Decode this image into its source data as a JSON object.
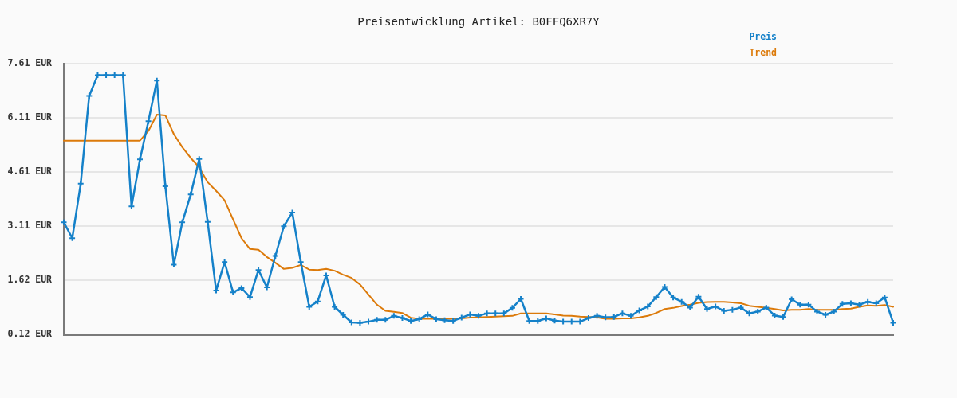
{
  "chart_data": {
    "type": "line",
    "title": "Preisentwicklung Artikel: B0FFQ6XR7Y",
    "categories": [
      null,
      null,
      null,
      null,
      null,
      null,
      null,
      null,
      null,
      null,
      null,
      null,
      null,
      null,
      null,
      null,
      null,
      null,
      null,
      null,
      null,
      null,
      null,
      null,
      null,
      null,
      null,
      null,
      null,
      null,
      null,
      null,
      null,
      null,
      null,
      null,
      null,
      null,
      null,
      null,
      null,
      null,
      null,
      null,
      null,
      null,
      null,
      null,
      null,
      null,
      null,
      null,
      null,
      null,
      null,
      null,
      null,
      null,
      null,
      null,
      null,
      null,
      null,
      null,
      null,
      null,
      null,
      null,
      null,
      null,
      null,
      null,
      null,
      null,
      null,
      null,
      null,
      null,
      null,
      null,
      null,
      null,
      null,
      null,
      null,
      null,
      null,
      null,
      null,
      null,
      null,
      null,
      null,
      null,
      null,
      null,
      null,
      null,
      null
    ],
    "series": [
      {
        "name": "Preis",
        "color": "#1581c9",
        "marker": "cross",
        "values": [
          3.22,
          2.78,
          4.29,
          6.72,
          7.29,
          7.29,
          7.29,
          7.29,
          3.66,
          4.96,
          6.02,
          7.14,
          4.22,
          2.05,
          3.22,
          3.99,
          4.97,
          3.23,
          1.33,
          2.12,
          1.28,
          1.4,
          1.15,
          1.9,
          1.42,
          2.29,
          3.11,
          3.49,
          2.12,
          0.88,
          1.03,
          1.75,
          0.88,
          0.66,
          0.45,
          0.44,
          0.47,
          0.52,
          0.52,
          0.63,
          0.57,
          0.49,
          0.54,
          0.67,
          0.54,
          0.51,
          0.49,
          0.58,
          0.67,
          0.63,
          0.7,
          0.7,
          0.7,
          0.85,
          1.1,
          0.49,
          0.49,
          0.56,
          0.5,
          0.47,
          0.47,
          0.47,
          0.57,
          0.63,
          0.59,
          0.6,
          0.7,
          0.63,
          0.78,
          0.89,
          1.15,
          1.43,
          1.14,
          1.02,
          0.86,
          1.16,
          0.82,
          0.89,
          0.77,
          0.8,
          0.86,
          0.7,
          0.75,
          0.86,
          0.64,
          0.6,
          1.09,
          0.94,
          0.94,
          0.75,
          0.66,
          0.75,
          0.96,
          0.98,
          0.94,
          1.02,
          0.98,
          1.14,
          0.44
        ]
      },
      {
        "name": "Trend",
        "color": "#dc7a0a",
        "marker": "none",
        "values": [
          5.48,
          5.48,
          5.48,
          5.48,
          5.48,
          5.48,
          5.48,
          5.48,
          5.48,
          5.48,
          5.75,
          6.2,
          6.18,
          5.66,
          5.3,
          5.0,
          4.74,
          4.33,
          4.09,
          3.83,
          3.3,
          2.78,
          2.48,
          2.46,
          2.26,
          2.1,
          1.93,
          1.96,
          2.04,
          1.91,
          1.9,
          1.93,
          1.88,
          1.77,
          1.68,
          1.5,
          1.22,
          0.94,
          0.77,
          0.74,
          0.71,
          0.58,
          0.55,
          0.55,
          0.55,
          0.55,
          0.55,
          0.56,
          0.58,
          0.59,
          0.6,
          0.61,
          0.62,
          0.63,
          0.7,
          0.7,
          0.7,
          0.7,
          0.67,
          0.64,
          0.63,
          0.61,
          0.6,
          0.59,
          0.55,
          0.55,
          0.56,
          0.56,
          0.59,
          0.63,
          0.71,
          0.82,
          0.85,
          0.9,
          0.94,
          0.99,
          1.01,
          1.02,
          1.02,
          1.0,
          0.98,
          0.91,
          0.88,
          0.85,
          0.82,
          0.78,
          0.8,
          0.8,
          0.82,
          0.8,
          0.8,
          0.8,
          0.82,
          0.83,
          0.88,
          0.92,
          0.91,
          0.93,
          0.88
        ]
      }
    ],
    "ylim": [
      0.12,
      7.61
    ],
    "yticks": [
      {
        "value": 0.12,
        "label": "0.12 EUR"
      },
      {
        "value": 1.62,
        "label": "1.62 EUR"
      },
      {
        "value": 3.11,
        "label": "3.11 EUR"
      },
      {
        "value": 4.61,
        "label": "4.61 EUR"
      },
      {
        "value": 6.11,
        "label": "6.11 EUR"
      },
      {
        "value": 7.61,
        "label": "7.61 EUR"
      }
    ],
    "grid": "y",
    "legend": "top right",
    "tick_labels": "y"
  }
}
